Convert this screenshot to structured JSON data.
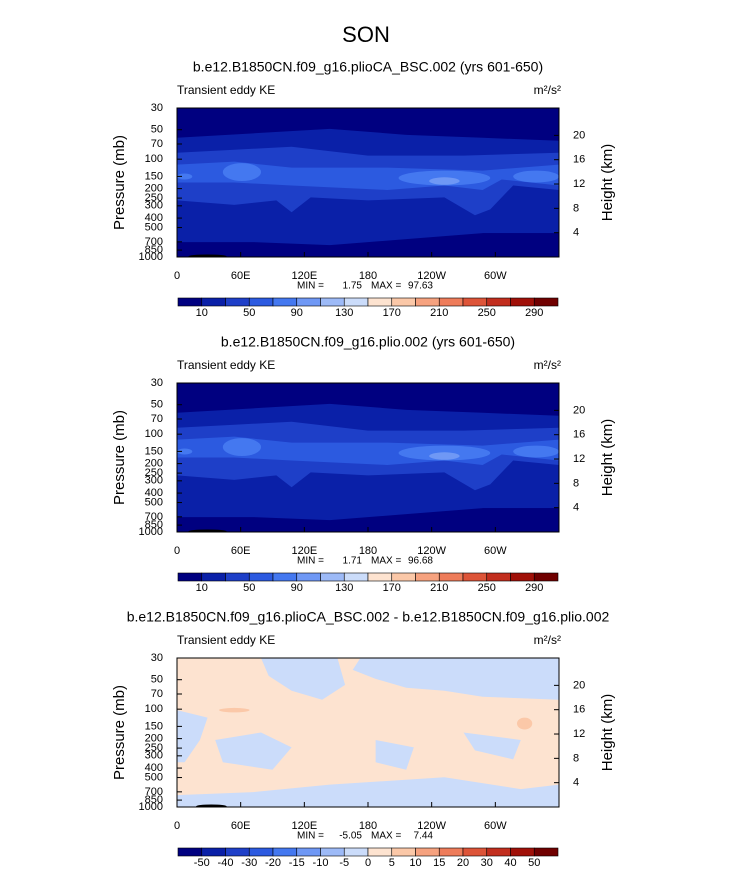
{
  "title": "SON",
  "chart_data": [
    {
      "type": "contour",
      "title": "b.e12.B1850CN.f09_g16.plioCA_BSC.002 (yrs 601-650)",
      "label": "Transient eddy KE",
      "units": "m²/s²",
      "ylabel": "Pressure (mb)",
      "y2label": "Height (km)",
      "xlim": [
        0,
        360
      ],
      "xticks": [
        0,
        {
          "value": 60,
          "label": "60E"
        },
        {
          "value": 120,
          "label": "120E"
        },
        180,
        {
          "value": 240,
          "label": "120W"
        },
        {
          "value": 300,
          "label": "60W"
        }
      ],
      "ylim": [
        1000,
        30
      ],
      "ylog": true,
      "yticks": [
        30,
        50,
        70,
        100,
        150,
        200,
        250,
        300,
        400,
        500,
        700,
        850,
        1000
      ],
      "y2lim": [
        0,
        24.5
      ],
      "y2ticks": [
        4,
        8,
        12,
        16,
        20
      ],
      "min_label": "MIN =",
      "min": 1.75,
      "max_label": "MAX =",
      "max": 97.63,
      "colorbar": {
        "levels": [
          10,
          30,
          50,
          70,
          90,
          110,
          130,
          150,
          170,
          190,
          210,
          230,
          250,
          270,
          290
        ],
        "ticks": [
          10,
          50,
          90,
          130,
          170,
          210,
          250,
          290
        ],
        "colors": [
          "#000080",
          "#0a20a8",
          "#1e3fc8",
          "#2c5ae0",
          "#4478f0",
          "#6f98f5",
          "#9dbaf7",
          "#cbdcfa",
          "#fde3d0",
          "#fbc8a8",
          "#f6a27f",
          "#ee7c5a",
          "#dd5438",
          "#c22e1e",
          "#a01008",
          "#700000"
        ]
      }
    },
    {
      "type": "contour",
      "title": "b.e12.B1850CN.f09_g16.plio.002 (yrs 601-650)",
      "label": "Transient eddy KE",
      "units": "m²/s²",
      "ylabel": "Pressure (mb)",
      "y2label": "Height (km)",
      "xlim": [
        0,
        360
      ],
      "xticks": [
        0,
        {
          "value": 60,
          "label": "60E"
        },
        {
          "value": 120,
          "label": "120E"
        },
        180,
        {
          "value": 240,
          "label": "120W"
        },
        {
          "value": 300,
          "label": "60W"
        }
      ],
      "ylim": [
        1000,
        30
      ],
      "ylog": true,
      "yticks": [
        30,
        50,
        70,
        100,
        150,
        200,
        250,
        300,
        400,
        500,
        700,
        850,
        1000
      ],
      "y2lim": [
        0,
        24.5
      ],
      "y2ticks": [
        4,
        8,
        12,
        16,
        20
      ],
      "min_label": "MIN =",
      "min": 1.71,
      "max_label": "MAX =",
      "max": 96.68,
      "colorbar": {
        "levels": [
          10,
          30,
          50,
          70,
          90,
          110,
          130,
          150,
          170,
          190,
          210,
          230,
          250,
          270,
          290
        ],
        "ticks": [
          10,
          50,
          90,
          130,
          170,
          210,
          250,
          290
        ],
        "colors": [
          "#000080",
          "#0a20a8",
          "#1e3fc8",
          "#2c5ae0",
          "#4478f0",
          "#6f98f5",
          "#9dbaf7",
          "#cbdcfa",
          "#fde3d0",
          "#fbc8a8",
          "#f6a27f",
          "#ee7c5a",
          "#dd5438",
          "#c22e1e",
          "#a01008",
          "#700000"
        ]
      }
    },
    {
      "type": "contour-diff",
      "title": "b.e12.B1850CN.f09_g16.plioCA_BSC.002 - b.e12.B1850CN.f09_g16.plio.002",
      "label": "Transient eddy KE",
      "units": "m²/s²",
      "ylabel": "Pressure (mb)",
      "y2label": "Height (km)",
      "xlim": [
        0,
        360
      ],
      "xticks": [
        0,
        {
          "value": 60,
          "label": "60E"
        },
        {
          "value": 120,
          "label": "120E"
        },
        180,
        {
          "value": 240,
          "label": "120W"
        },
        {
          "value": 300,
          "label": "60W"
        }
      ],
      "ylim": [
        1000,
        30
      ],
      "ylog": true,
      "yticks": [
        30,
        50,
        70,
        100,
        150,
        200,
        250,
        300,
        400,
        500,
        700,
        850,
        1000
      ],
      "y2lim": [
        0,
        24.5
      ],
      "y2ticks": [
        4,
        8,
        12,
        16,
        20
      ],
      "min_label": "MIN =",
      "min": -5.05,
      "max_label": "MAX =",
      "max": 7.44,
      "colorbar": {
        "levels": [
          -50,
          -40,
          -30,
          -20,
          -15,
          -10,
          -5,
          0,
          5,
          10,
          15,
          20,
          30,
          40,
          50
        ],
        "ticks": [
          -50,
          -40,
          -30,
          -20,
          -15,
          -10,
          -5,
          0,
          5,
          10,
          15,
          20,
          30,
          40,
          50
        ],
        "colors": [
          "#000080",
          "#0a20a8",
          "#1e3fc8",
          "#2c5ae0",
          "#4478f0",
          "#6f98f5",
          "#9dbaf7",
          "#cbdcfa",
          "#fde3d0",
          "#fbc8a8",
          "#f6a27f",
          "#ee7c5a",
          "#dd5438",
          "#c22e1e",
          "#a01008",
          "#700000"
        ]
      }
    }
  ]
}
